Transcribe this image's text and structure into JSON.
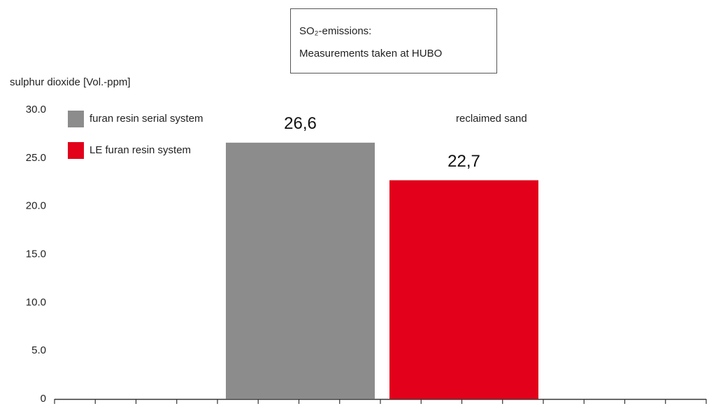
{
  "chart_data": {
    "type": "bar",
    "title": "SO₂-emissions:",
    "subtitle": "Measurements taken at HUBO",
    "y_label": "sulphur dioxide [Vol.-ppm]",
    "categories": [
      "reclaimed sand"
    ],
    "series": [
      {
        "name": "furan resin serial system",
        "color": "#8c8c8c",
        "values": [
          26.6
        ],
        "value_labels": [
          "26,6"
        ]
      },
      {
        "name": "LE furan resin system",
        "color": "#e2001a",
        "values": [
          22.7
        ],
        "value_labels": [
          "22,7"
        ]
      }
    ],
    "ylim": [
      0,
      30
    ],
    "yticks": [
      {
        "value": 30,
        "label": "30.0"
      },
      {
        "value": 25,
        "label": "25.0"
      },
      {
        "value": 20,
        "label": "20.0"
      },
      {
        "value": 15,
        "label": "15.0"
      },
      {
        "value": 10,
        "label": "10.0"
      },
      {
        "value": 5,
        "label": "5.0"
      },
      0
    ],
    "legend": "top-left"
  }
}
